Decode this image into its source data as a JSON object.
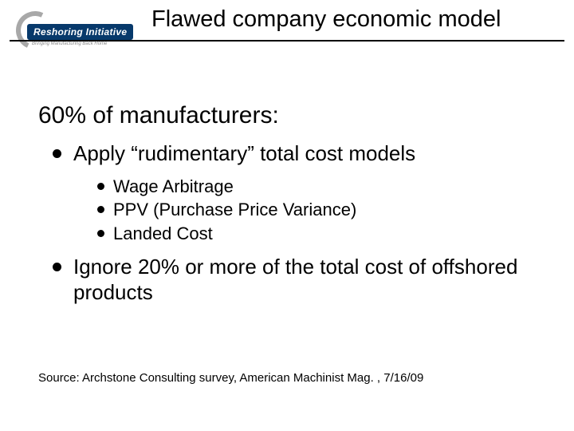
{
  "title": "Flawed company economic model",
  "logo": {
    "main": "Reshoring Initiative",
    "tagline": "Bringing Manufacturing Back Home"
  },
  "headline": "60% of manufacturers:",
  "bullets": [
    {
      "text": "Apply “rudimentary” total cost models",
      "sub": [
        "Wage Arbitrage",
        "PPV (Purchase Price Variance)",
        "Landed Cost"
      ]
    },
    {
      "text": "Ignore 20% or more of the total cost of offshored products",
      "sub": []
    }
  ],
  "source": "Source: Archstone Consulting survey, American Machinist Mag. , 7/16/09",
  "colors": {
    "background": "#ffffff",
    "text": "#000000",
    "logo_bg": "#07396b",
    "logo_arc": "#a8a8a8"
  }
}
